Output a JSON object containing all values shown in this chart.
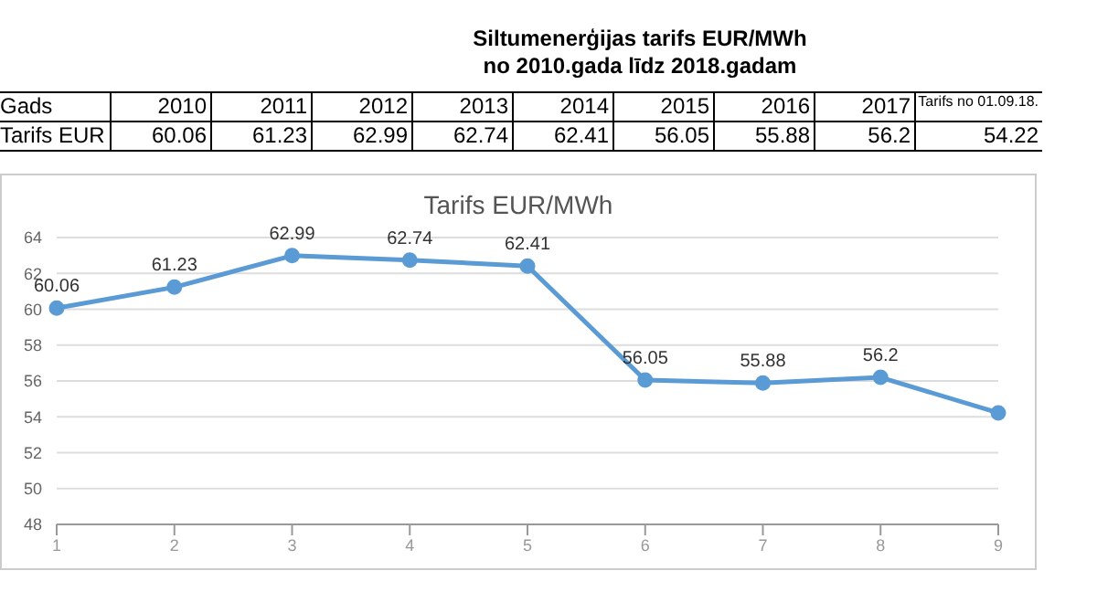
{
  "chart_data": {
    "type": "line",
    "title": "Tarifs EUR/MWh",
    "annotations": [
      "Siltumenerģijas tarifs EUR/MWh",
      "no 2010.gada līdz 2018.gadam",
      "Gads",
      "Tarifs EUR",
      "2010",
      "2011",
      "2012",
      "2013",
      "2014",
      "2015",
      "2016",
      "2017",
      "Tarifs no 01.09.18.",
      "60.06",
      "61.23",
      "62.99",
      "62.74",
      "62.41",
      "56.05",
      "55.88",
      "56.2",
      "54.22"
    ],
    "categories": [
      "1",
      "2",
      "3",
      "4",
      "5",
      "6",
      "7",
      "8",
      "9"
    ],
    "series": [
      {
        "color": "#5b9bd5",
        "values": [
          60.06,
          61.23,
          62.99,
          62.74,
          62.41,
          56.05,
          55.88,
          56.2,
          54.22
        ],
        "value_labels": [
          "60.06",
          "61.23",
          "62.99",
          "62.74",
          "62.41",
          "56.05",
          "55.88",
          "56.2",
          null
        ]
      }
    ],
    "ylim": [
      48,
      64
    ],
    "yticks": [
      48,
      50,
      52,
      54,
      56,
      58,
      60,
      62,
      64
    ],
    "grid": "y",
    "marker": "circle",
    "line_style": "solid",
    "legend": false
  }
}
